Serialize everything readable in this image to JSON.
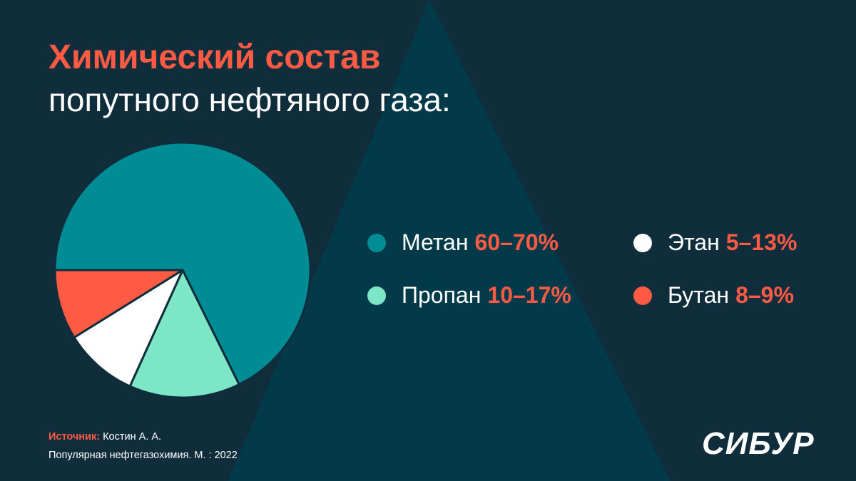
{
  "title": {
    "main": "Химический состав",
    "sub": "попутного нефтяного газа:"
  },
  "chart_data": {
    "type": "pie",
    "slices": [
      {
        "name": "Метан",
        "label": "60–70%",
        "value": 65,
        "color": "#008c95"
      },
      {
        "name": "Пропан",
        "label": "10–17%",
        "value": 13.5,
        "color": "#7de6c6"
      },
      {
        "name": "Этан",
        "label": "5–13%",
        "value": 9,
        "color": "#ffffff"
      },
      {
        "name": "Бутан",
        "label": "8–9%",
        "value": 8.5,
        "color": "#ff5a44"
      }
    ],
    "start_angle_deg": 180,
    "direction": "clockwise",
    "legend_position": "right"
  },
  "source": {
    "label": "Источник:",
    "author": "Костин А. А.",
    "publication": "Популярная нефтегазохимия. М. : 2022"
  },
  "logo": {
    "text": "СИБУР"
  },
  "colors": {
    "background": "#0f2d3b",
    "triangle": "#023a4a",
    "accent": "#ff5a44"
  }
}
